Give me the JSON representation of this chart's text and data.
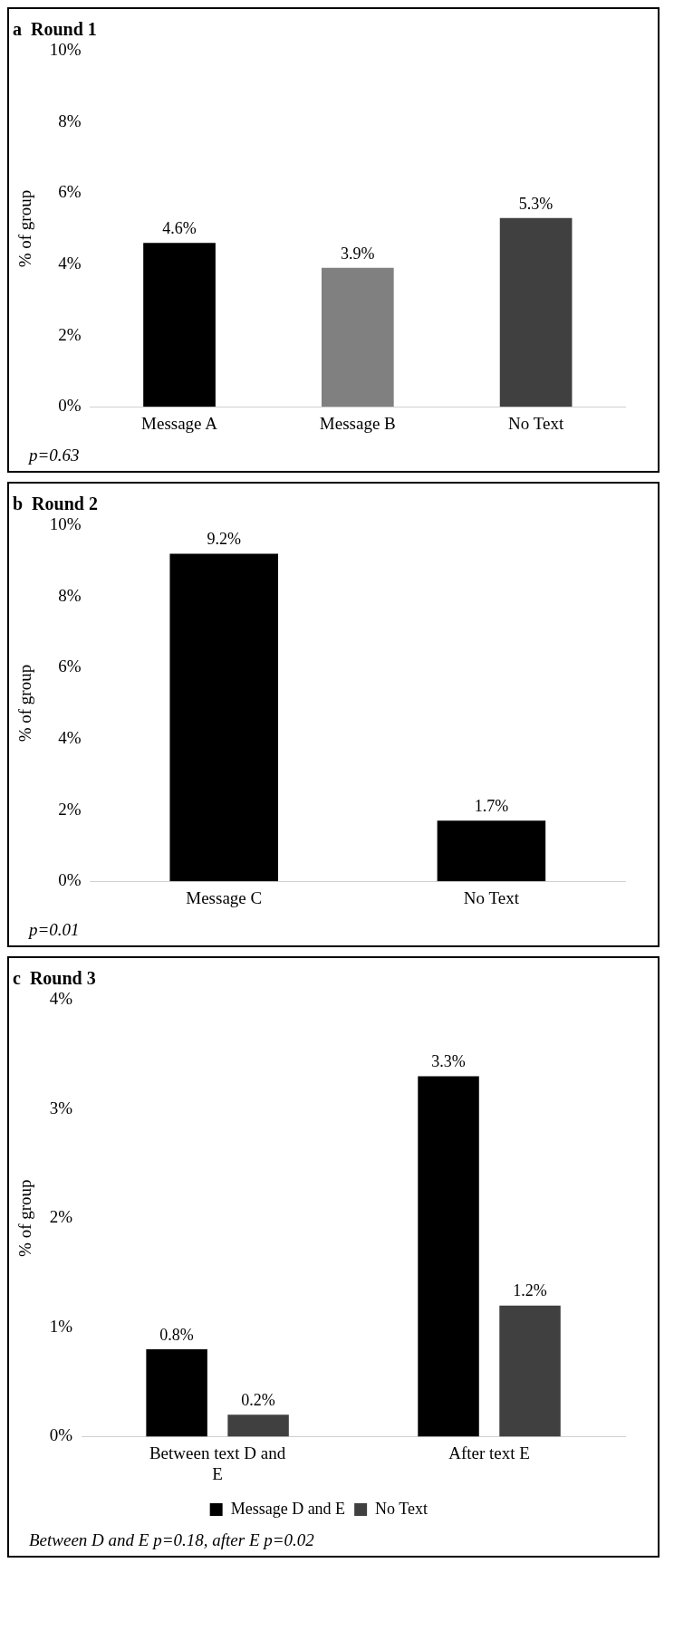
{
  "chart_data": [
    {
      "type": "bar",
      "title": "a  Round 1",
      "ylabel": "% of group",
      "categories": [
        "Message A",
        "Message B",
        "No Text"
      ],
      "values": [
        4.6,
        3.9,
        5.3
      ],
      "colors": [
        "#000000",
        "#808080",
        "#404040"
      ],
      "value_labels": [
        "4.6%",
        "3.9%",
        "5.3%"
      ],
      "ylim": [
        0,
        10
      ],
      "yticks": [
        {
          "value": 0,
          "label": "0%"
        },
        {
          "value": 2,
          "label": "2%"
        },
        {
          "value": 4,
          "label": "4%"
        },
        {
          "value": 6,
          "label": "6%"
        },
        {
          "value": 8,
          "label": "8%"
        },
        {
          "value": 10,
          "label": "10%"
        }
      ],
      "grid": false,
      "legend": false,
      "annotations": [
        "p=0.63"
      ]
    },
    {
      "type": "bar",
      "title": "b  Round 2",
      "ylabel": "% of group",
      "categories": [
        "Message C",
        "No Text"
      ],
      "values": [
        9.2,
        1.7
      ],
      "colors": [
        "#000000",
        "#000000"
      ],
      "value_labels": [
        "9.2%",
        "1.7%"
      ],
      "ylim": [
        0,
        10
      ],
      "yticks": [
        {
          "value": 0,
          "label": "0%"
        },
        {
          "value": 2,
          "label": "2%"
        },
        {
          "value": 4,
          "label": "4%"
        },
        {
          "value": 6,
          "label": "6%"
        },
        {
          "value": 8,
          "label": "8%"
        },
        {
          "value": 10,
          "label": "10%"
        }
      ],
      "grid": false,
      "legend": false,
      "annotations": [
        "p=0.01"
      ]
    },
    {
      "type": "bar",
      "title": "c  Round 3",
      "ylabel": "% of group",
      "categories": [
        "Between text D and E",
        "After text E"
      ],
      "series": [
        {
          "name": "Message D and E",
          "color": "#000000",
          "values": [
            0.8,
            3.3
          ],
          "value_labels": [
            "0.8%",
            "3.3%"
          ]
        },
        {
          "name": "No Text",
          "color": "#404040",
          "values": [
            0.2,
            1.2
          ],
          "value_labels": [
            "0.2%",
            "1.2%"
          ]
        }
      ],
      "ylim": [
        0,
        4
      ],
      "yticks": [
        {
          "value": 0,
          "label": "0%"
        },
        {
          "value": 1,
          "label": "1%"
        },
        {
          "value": 2,
          "label": "2%"
        },
        {
          "value": 3,
          "label": "3%"
        },
        {
          "value": 4,
          "label": "4%"
        }
      ],
      "grid": false,
      "legend": "bottom",
      "annotations": [
        "Between D and E p=0.18, after E p=0.02"
      ]
    }
  ]
}
